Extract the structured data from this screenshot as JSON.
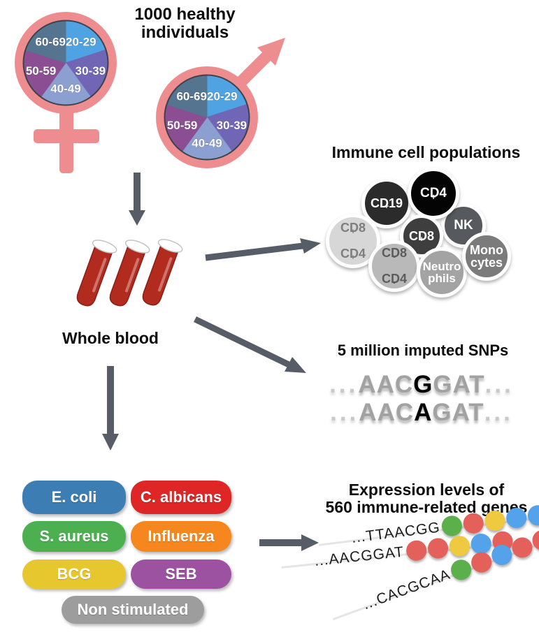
{
  "colors": {
    "symbol_pink": "#ee8d8f",
    "pie_ring": "#3b4249",
    "arrow": "#565d66",
    "blood": "#b22b1f",
    "blood_dark": "#8a1f15",
    "tube_rim": "#ffffff"
  },
  "header": {
    "title": "1000 healthy individuals"
  },
  "age_pie": {
    "groups": [
      {
        "label": "20-29",
        "color": "#4fa3e2"
      },
      {
        "label": "30-39",
        "color": "#7165b5"
      },
      {
        "label": "40-49",
        "color": "#8b9fd1"
      },
      {
        "label": "50-59",
        "color": "#8c4e92"
      },
      {
        "label": "60-69",
        "color": "#55748f"
      }
    ]
  },
  "whole_blood": {
    "label": "Whole blood"
  },
  "immune": {
    "title": "Immune cell populations",
    "cells": [
      {
        "lines": [
          "NK"
        ],
        "fill": "#565a5e",
        "text": "#ffffff"
      },
      {
        "lines": [
          "CD19+"
        ],
        "fill": "#2b2b2b",
        "text": "#ffffff"
      },
      {
        "lines": [
          "CD4+"
        ],
        "fill": "#040404",
        "text": "#ffffff"
      },
      {
        "lines": [
          "CD8+",
          "CD4+"
        ],
        "fill": "#d7d7d7",
        "text": "#7e7e7e"
      },
      {
        "lines": [
          "CD8+"
        ],
        "fill": "#3e3e3e",
        "text": "#ffffff"
      },
      {
        "lines": [
          "CD8-",
          "CD4-"
        ],
        "fill": "#b9b9b9",
        "text": "#5c5c5c"
      },
      {
        "lines": [
          "Neutro",
          "phils"
        ],
        "fill": "#a3a3a3",
        "text": "#ffffff"
      },
      {
        "lines": [
          "Mono",
          "cytes"
        ],
        "fill": "#7b7b7b",
        "text": "#ffffff"
      }
    ]
  },
  "snps": {
    "title": "5 million imputed SNPs",
    "rows": [
      {
        "dots_pre": "...",
        "pre": "AAC",
        "snp": "G",
        "post": "GAT",
        "dots_post": "..."
      },
      {
        "dots_pre": "...",
        "pre": "AAC",
        "snp": "A",
        "post": "GAT",
        "dots_post": "..."
      }
    ]
  },
  "stimuli": {
    "items": [
      {
        "label": "E. coli",
        "color": "#3c7db4"
      },
      {
        "label": "C. albicans",
        "color": "#de2626"
      },
      {
        "label": "S. aureus",
        "color": "#4cb050"
      },
      {
        "label": "Influenza",
        "color": "#f6871f"
      },
      {
        "label": "BCG",
        "color": "#e6c72e"
      },
      {
        "label": "SEB",
        "color": "#9c51a1"
      },
      {
        "label": "Non stimulated",
        "color": "#9d9d9d"
      }
    ]
  },
  "expression": {
    "title_line1": "Expression levels of",
    "title_line2": "560 immune-related genes",
    "dot_colors": {
      "green": "#5bb04c",
      "red": "#e4605a",
      "yellow": "#efc93f",
      "blue": "#54a2e9"
    },
    "strands": [
      {
        "sequence": "...TTAACGG",
        "dots": [
          "green",
          "red",
          "yellow",
          "blue",
          "blue"
        ]
      },
      {
        "sequence": "...AACGGAT",
        "dots": [
          "red",
          "red",
          "yellow",
          "blue",
          "red"
        ]
      },
      {
        "sequence": "...CACGCAA",
        "dots": [
          "green",
          "red",
          "blue",
          "red",
          "red"
        ]
      }
    ]
  }
}
